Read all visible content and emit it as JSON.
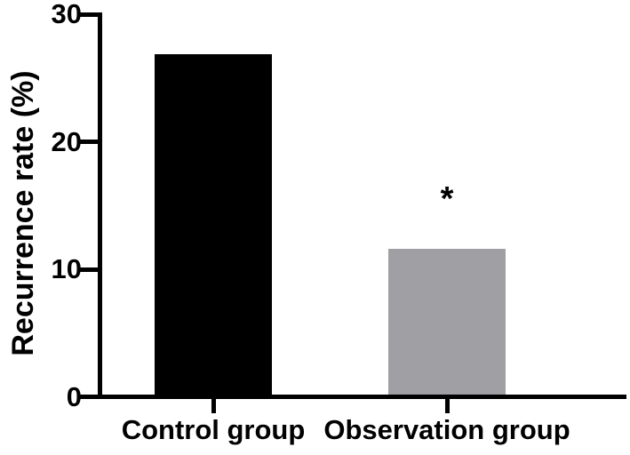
{
  "chart_data": {
    "type": "bar",
    "title": "",
    "xlabel": "",
    "ylabel": "Recurrence rate (%)",
    "categories": [
      "Control group",
      "Observation group"
    ],
    "values": [
      26.7,
      11.4
    ],
    "bar_colors": [
      "#000000",
      "#a0a0a4"
    ],
    "yticks": [
      0,
      10,
      20,
      30
    ],
    "ytick_labels": [
      "0",
      "10",
      "20",
      "30"
    ],
    "ylim": [
      0,
      30
    ],
    "grid": false,
    "legend": null,
    "annotations": [
      {
        "category_index": 1,
        "text": "*",
        "y_value": 15.6
      }
    ]
  },
  "colors": {
    "background": "#ffffff",
    "axis": "#000000",
    "text": "#000000",
    "control_bar": "#000000",
    "observation_bar": "#a0a0a4"
  }
}
